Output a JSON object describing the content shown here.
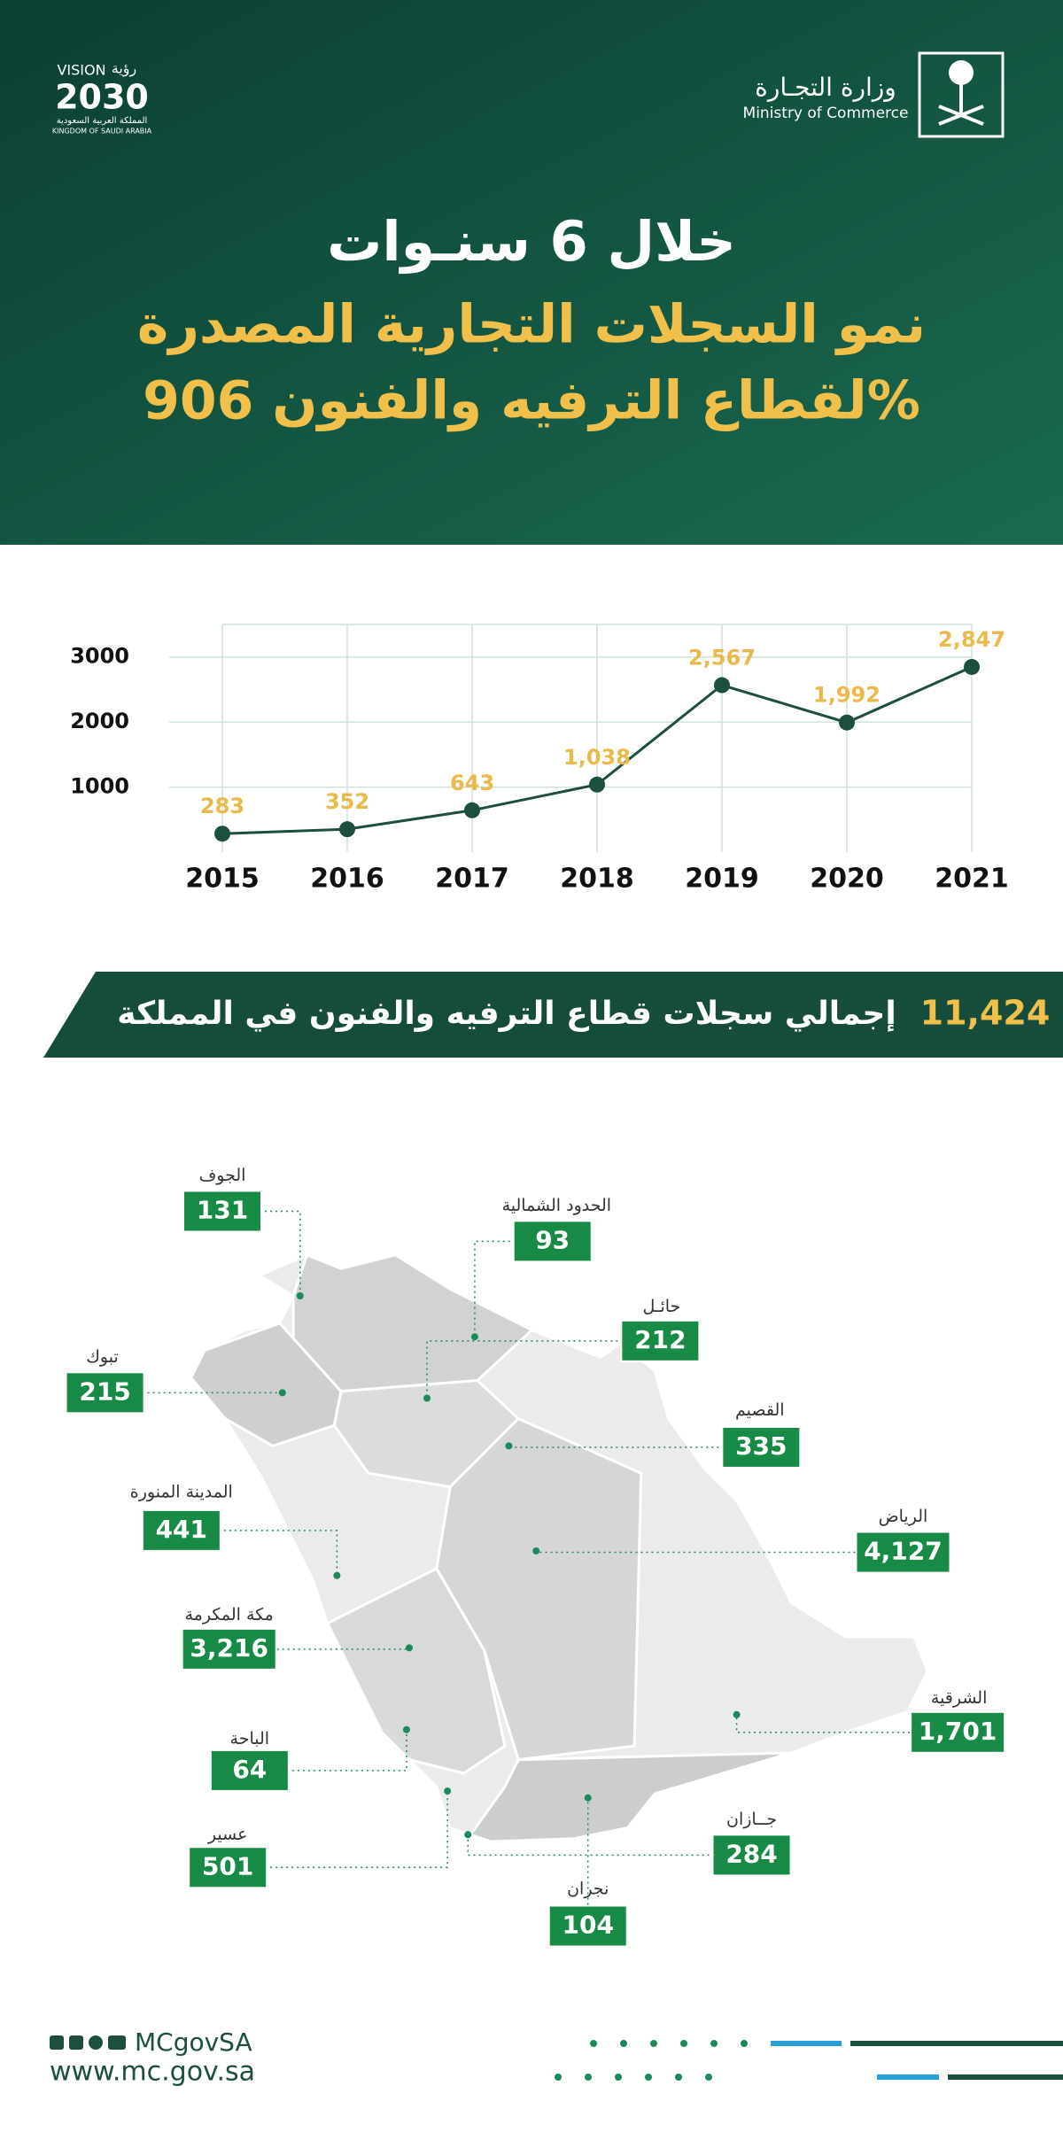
{
  "header": {
    "vision_logo": {
      "latin": "VISION",
      "arabic": "رؤية",
      "year": "2030",
      "arabic_country": "المملكة العربية السعودية",
      "english_country": "KINGDOM OF SAUDI ARABIA"
    },
    "ministry": {
      "arabic": "وزارة التجـارة",
      "english": "Ministry of Commerce"
    },
    "title_lines": [
      "خلال 6 سنـوات",
      "نمو السجلات التجارية المصدرة",
      "لقطاع الترفيه والفنون 906%"
    ]
  },
  "chart_data": {
    "type": "line",
    "categories": [
      "2015",
      "2016",
      "2017",
      "2018",
      "2019",
      "2020",
      "2021"
    ],
    "values": [
      283,
      352,
      643,
      1038,
      2567,
      1992,
      2847
    ],
    "value_labels": [
      "283",
      "352",
      "643",
      "1,038",
      "2,567",
      "1,992",
      "2,847"
    ],
    "ylim": [
      0,
      3500
    ],
    "yticks": [
      1000,
      2000,
      3000
    ],
    "grid": true,
    "color": "#1d4f40",
    "label_color": "#e9b949"
  },
  "total": {
    "value": "11,424",
    "label": "إجمالي سجلات قطاع الترفيه والفنون في المملكة"
  },
  "regions": [
    {
      "name": "الجوف",
      "value": "131"
    },
    {
      "name": "الحدود الشمالية",
      "value": "93"
    },
    {
      "name": "حائـل",
      "value": "212"
    },
    {
      "name": "تبوك",
      "value": "215"
    },
    {
      "name": "القصيم",
      "value": "335"
    },
    {
      "name": "المدينة المنورة",
      "value": "441"
    },
    {
      "name": "الرياض",
      "value": "4,127"
    },
    {
      "name": "مكة المكرمة",
      "value": "3,216"
    },
    {
      "name": "الشرقية",
      "value": "1,701"
    },
    {
      "name": "الباحة",
      "value": "64"
    },
    {
      "name": "جــازان",
      "value": "284"
    },
    {
      "name": "عسير",
      "value": "501"
    },
    {
      "name": "نجران",
      "value": "104"
    }
  ],
  "footer": {
    "handle": "MCgovSA",
    "website": "www.mc.gov.sa"
  }
}
